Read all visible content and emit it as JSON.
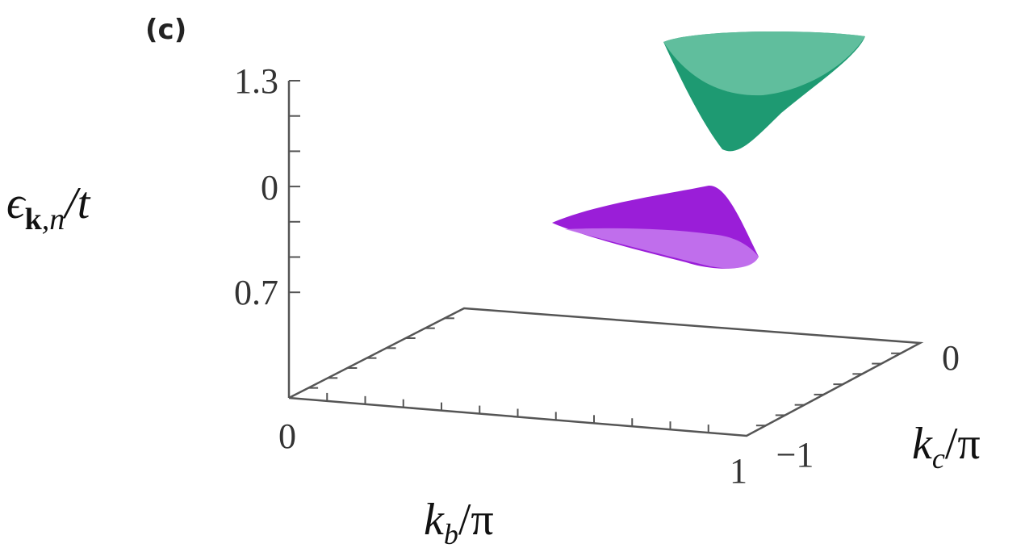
{
  "panel_label": "(c)",
  "chart_data": {
    "type": "surface3d",
    "zlabel": {
      "symbol": "ϵ",
      "subscript": "k",
      "subscript_rest": ",n",
      "suffix": "/t"
    },
    "xlabel": {
      "symbol": "k",
      "subscript": "b",
      "suffix": "/π"
    },
    "ylabel": {
      "symbol": "k",
      "subscript": "c",
      "suffix": "/π"
    },
    "zticklabels": [
      "1.3",
      "0",
      "0.7"
    ],
    "xticklabels": [
      "0",
      "1"
    ],
    "yticklabels": [
      "−1",
      "0"
    ],
    "surfaces": [
      {
        "color": "#1e9a72",
        "top_color": "#6cc4a4"
      },
      {
        "color": "#9a1ed8",
        "top_color": "#c77cf0"
      }
    ]
  }
}
